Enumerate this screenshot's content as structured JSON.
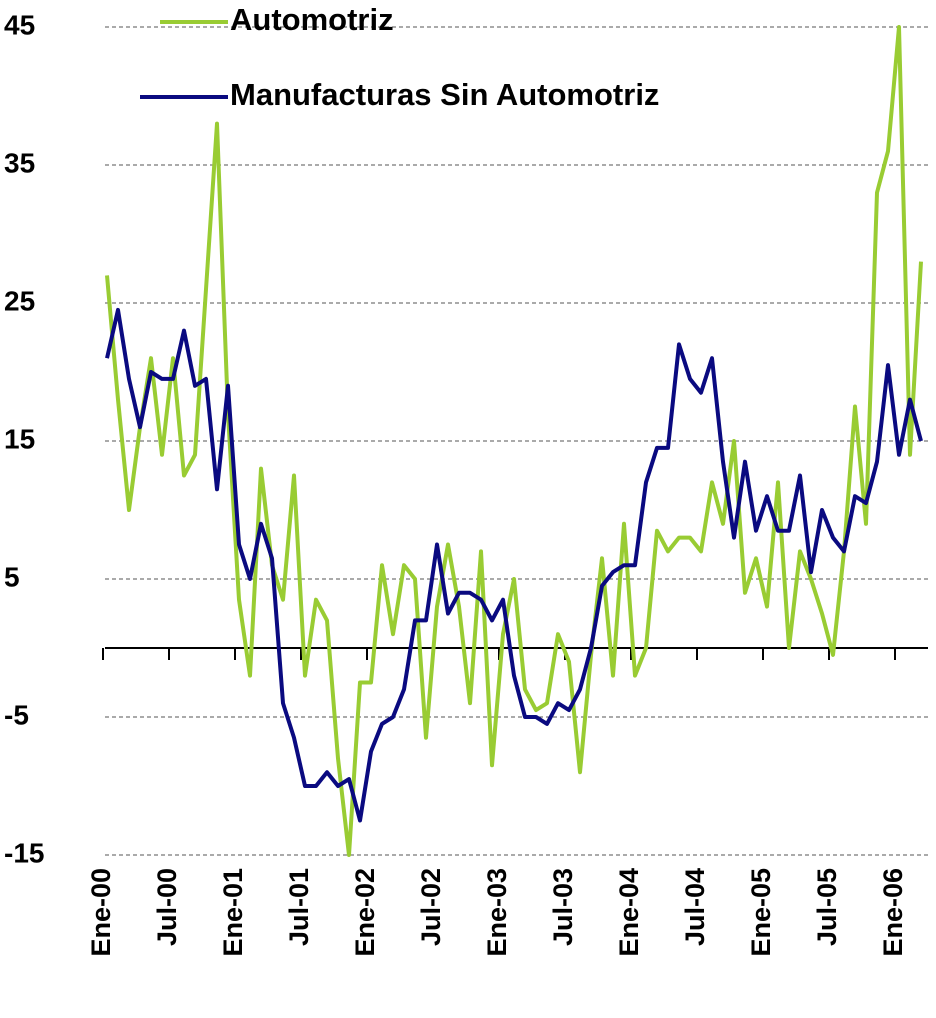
{
  "chart_data": {
    "type": "line",
    "categories": [
      "Ene-00",
      null,
      null,
      null,
      null,
      null,
      "Jul-00",
      null,
      null,
      null,
      null,
      null,
      "Ene-01",
      null,
      null,
      null,
      null,
      null,
      "Jul-01",
      null,
      null,
      null,
      null,
      null,
      "Ene-02",
      null,
      null,
      null,
      null,
      null,
      "Jul-02",
      null,
      null,
      null,
      null,
      null,
      "Ene-03",
      null,
      null,
      null,
      null,
      null,
      "Jul-03",
      null,
      null,
      null,
      null,
      null,
      "Ene-04",
      null,
      null,
      null,
      null,
      null,
      "Jul-04",
      null,
      null,
      null,
      null,
      null,
      "Ene-05",
      null,
      null,
      null,
      null,
      null,
      "Jul-05",
      null,
      null,
      null,
      null,
      null,
      "Ene-06",
      null,
      null
    ],
    "series": [
      {
        "name": "Automotriz",
        "color": "#99cc33",
        "values": [
          27,
          18,
          10,
          16,
          21,
          14,
          21,
          12.5,
          14,
          26,
          38,
          17,
          3.5,
          -2,
          13,
          6,
          3.5,
          12.5,
          -2,
          3.5,
          2,
          -8,
          -15,
          -2.5,
          -2.5,
          6,
          1,
          6,
          5,
          -6.5,
          3,
          7.5,
          3,
          -4,
          7,
          -8.5,
          1,
          5,
          -3,
          -4.5,
          -4,
          1,
          -1,
          -9,
          -0.5,
          6.5,
          -2,
          9,
          -2,
          0,
          8.5,
          7,
          8,
          8,
          7,
          12,
          9,
          15,
          4,
          6.5,
          3,
          12,
          0,
          7,
          5,
          2.5,
          -0.5,
          7,
          17.5,
          9,
          33,
          36,
          45,
          14,
          28
        ]
      },
      {
        "name": "Manufacturas Sin Automotriz",
        "color": "#0a0a80",
        "values": [
          21,
          24.5,
          19.5,
          16,
          20,
          19.5,
          19.5,
          23,
          19,
          19.5,
          11.5,
          19,
          7.5,
          5,
          9,
          6.5,
          -4,
          -6.5,
          -10,
          -10,
          -9,
          -10,
          -9.5,
          -12.5,
          -7.5,
          -5.5,
          -5,
          -3,
          2,
          2,
          7.5,
          2.5,
          4,
          4,
          3.5,
          2,
          3.5,
          -2,
          -5,
          -5,
          -5.5,
          -4,
          -4.5,
          -3,
          0,
          4.5,
          5.5,
          6,
          6,
          12,
          14.5,
          14.5,
          22,
          19.5,
          18.5,
          21,
          13.5,
          8,
          13.5,
          8.5,
          11,
          8.5,
          8.5,
          12.5,
          5.5,
          10,
          8,
          7,
          11,
          10.5,
          13.5,
          20.5,
          14,
          18,
          15
        ]
      }
    ],
    "ylim": [
      -15,
      45
    ],
    "yticks": [
      45,
      35,
      25,
      15,
      5,
      -5,
      -15
    ],
    "grid": true
  }
}
